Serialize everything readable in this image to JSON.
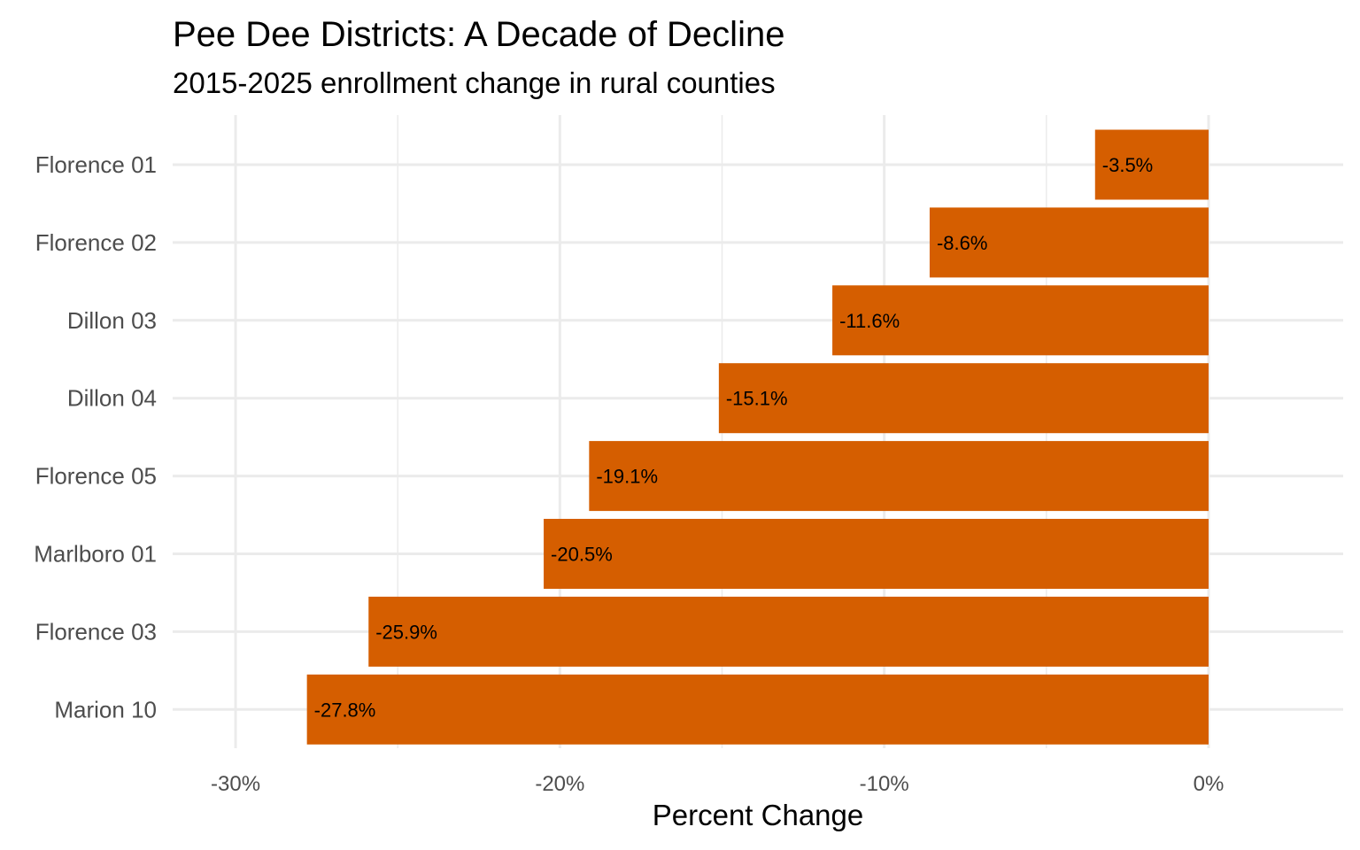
{
  "chart_data": {
    "type": "bar",
    "orientation": "horizontal",
    "title": "Pee Dee Districts: A Decade of Decline",
    "subtitle": "2015-2025 enrollment change in rural counties",
    "xlabel": "Percent Change",
    "ylabel": "",
    "categories": [
      "Florence 01",
      "Florence 02",
      "Dillon 03",
      "Dillon 04",
      "Florence 05",
      "Marlboro 01",
      "Florence 03",
      "Marion 10"
    ],
    "values": [
      -3.5,
      -8.6,
      -11.6,
      -15.1,
      -19.1,
      -20.5,
      -25.9,
      -27.8
    ],
    "data_labels": [
      "-3.5%",
      "-8.6%",
      "-11.6%",
      "-15.1%",
      "-19.1%",
      "-20.5%",
      "-25.9%",
      "-27.8%"
    ],
    "xlim": [
      -31.94,
      4.15
    ],
    "x_ticks": [
      -30,
      -20,
      -10,
      0
    ],
    "x_tick_labels": [
      "-30%",
      "-20%",
      "-10%",
      "0%"
    ],
    "x_minor_ticks": [
      -25,
      -15,
      -5
    ],
    "grid": true,
    "bar_color": "#D55E00",
    "legend": "none"
  }
}
